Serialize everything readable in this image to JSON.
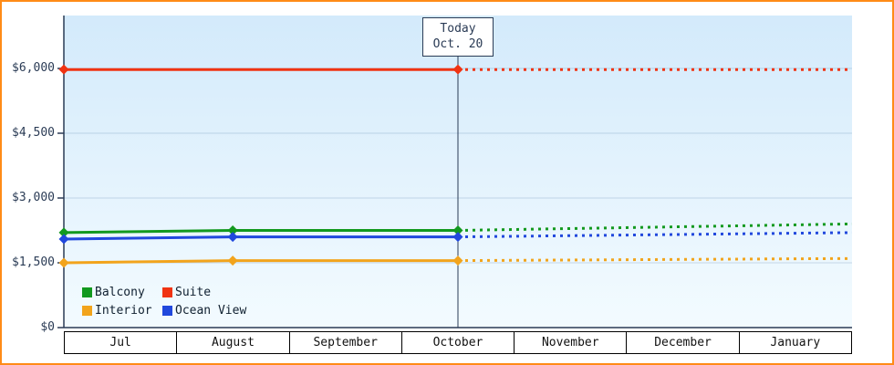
{
  "page": {
    "frame_color": "#ff8b17"
  },
  "chart_data": {
    "type": "line",
    "x_axis": {
      "months": [
        "Jul",
        "August",
        "September",
        "October",
        "November",
        "December",
        "January"
      ]
    },
    "y_axis": {
      "max": 6000,
      "ticks": [
        0,
        1500,
        3000,
        4500,
        6000
      ],
      "labels": [
        "$0",
        "$1,500",
        "$3,000",
        "$4,500",
        "$6,000"
      ]
    },
    "today_marker": {
      "line1": "Today",
      "line2": "Oct. 20",
      "month_position": 3
    },
    "axis_color": "#2a3b55",
    "grid_color": "rgba(100,140,180,0.30)",
    "plot_bg_top": "#d3eafb",
    "plot_bg_bottom": "#f3fbff",
    "legend": [
      {
        "label": "Balcony",
        "color": "#12991f"
      },
      {
        "label": "Suite",
        "color": "#f03312"
      },
      {
        "label": "Interior",
        "color": "#f2a41c"
      },
      {
        "label": "Ocean View",
        "color": "#2148dd"
      }
    ],
    "series": [
      {
        "name": "Suite",
        "color": "#f03312",
        "solid_points": [
          [
            -0.5,
            5975
          ],
          [
            3,
            5975
          ]
        ],
        "dashed_points": [
          [
            3,
            5975
          ],
          [
            6.5,
            5975
          ]
        ],
        "marker_positions": [
          -0.5,
          3
        ]
      },
      {
        "name": "Balcony",
        "color": "#12991f",
        "solid_points": [
          [
            -0.5,
            2200
          ],
          [
            1,
            2250
          ],
          [
            3,
            2250
          ]
        ],
        "dashed_points": [
          [
            3,
            2250
          ],
          [
            6.5,
            2400
          ]
        ],
        "marker_positions": [
          -0.5,
          1,
          3
        ]
      },
      {
        "name": "Ocean View",
        "color": "#2148dd",
        "solid_points": [
          [
            -0.5,
            2050
          ],
          [
            1,
            2100
          ],
          [
            3,
            2100
          ]
        ],
        "dashed_points": [
          [
            3,
            2100
          ],
          [
            6.5,
            2200
          ]
        ],
        "marker_positions": [
          -0.5,
          1,
          3
        ]
      },
      {
        "name": "Interior",
        "color": "#f2a41c",
        "solid_points": [
          [
            -0.5,
            1500
          ],
          [
            1,
            1550
          ],
          [
            3,
            1550
          ]
        ],
        "dashed_points": [
          [
            3,
            1550
          ],
          [
            6.5,
            1600
          ]
        ],
        "marker_positions": [
          -0.5,
          1,
          3
        ]
      }
    ]
  }
}
